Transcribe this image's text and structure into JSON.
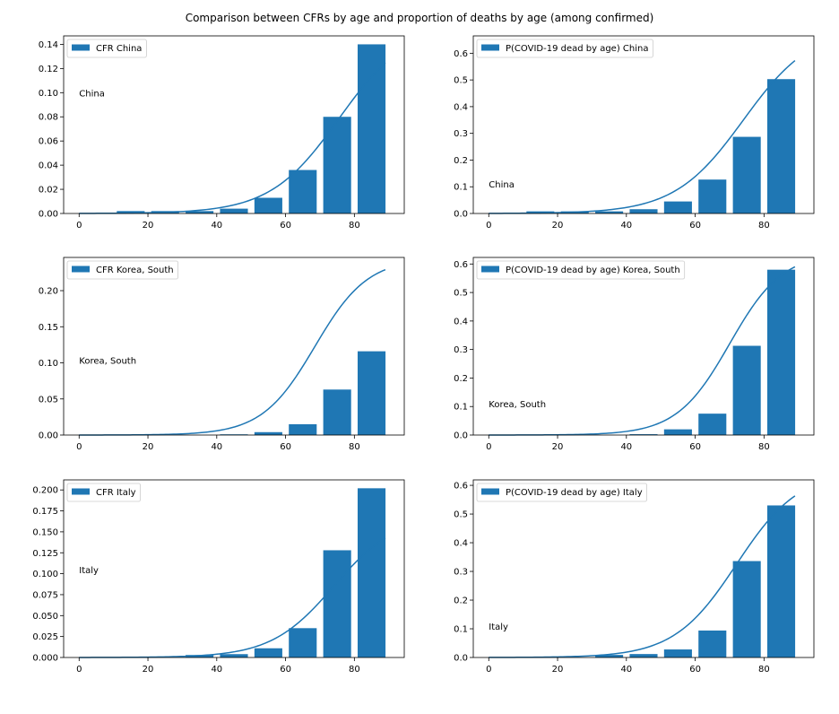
{
  "figure": {
    "title": "Comparison between CFRs by age and proportion of deaths by age (among confirmed)"
  },
  "style": {
    "bar_color": "#1f77b4",
    "line_color": "#1f77b4",
    "axis_color": "#000000"
  },
  "chart_data": [
    {
      "type": "bar",
      "legend": "CFR China",
      "legend_placement": "upper-left",
      "annotation": "China",
      "annotation_at": [
        0,
        0.1
      ],
      "x": [
        5,
        15,
        25,
        35,
        45,
        55,
        65,
        75,
        85
      ],
      "values": [
        0.0,
        0.002,
        0.002,
        0.002,
        0.004,
        0.013,
        0.036,
        0.08,
        0.14
      ],
      "xticks": [
        0,
        20,
        40,
        60,
        80
      ],
      "yticks": [
        0.0,
        0.02,
        0.04,
        0.06,
        0.08,
        0.1,
        0.12,
        0.14
      ],
      "ytick_labels": [
        "0.00",
        "0.02",
        "0.04",
        "0.06",
        "0.08",
        "0.10",
        "0.12",
        "0.14"
      ],
      "xlim": [
        -4.5,
        94.5
      ],
      "ylim": [
        0,
        0.147
      ],
      "curve": {
        "x0": 0,
        "x1": 89,
        "L": 0.157,
        "k": 0.1,
        "m": 75.5
      },
      "grid": false
    },
    {
      "type": "bar",
      "legend": "P(COVID-19 dead by age) China",
      "legend_placement": "upper-left",
      "annotation": "China",
      "annotation_at": [
        0,
        0.11
      ],
      "x": [
        5,
        15,
        25,
        35,
        45,
        55,
        65,
        75,
        85
      ],
      "values": [
        0.0,
        0.008,
        0.008,
        0.008,
        0.016,
        0.045,
        0.127,
        0.287,
        0.503
      ],
      "xticks": [
        0,
        20,
        40,
        60,
        80
      ],
      "yticks": [
        0.0,
        0.1,
        0.2,
        0.3,
        0.4,
        0.5,
        0.6
      ],
      "ytick_labels": [
        "0.0",
        "0.1",
        "0.2",
        "0.3",
        "0.4",
        "0.5",
        "0.6"
      ],
      "xlim": [
        -4.5,
        94.5
      ],
      "ylim": [
        0,
        0.665
      ],
      "curve": {
        "x0": 0,
        "x1": 89,
        "L": 0.7,
        "k": 0.1,
        "m": 74
      },
      "grid": false
    },
    {
      "type": "bar",
      "legend": "CFR Korea, South",
      "legend_placement": "upper-left",
      "annotation": "Korea, South",
      "annotation_at": [
        0,
        0.104
      ],
      "x": [
        5,
        15,
        25,
        35,
        45,
        55,
        65,
        75,
        85
      ],
      "values": [
        0.0,
        0.0,
        0.0,
        0.0,
        0.001,
        0.004,
        0.015,
        0.063,
        0.116
      ],
      "xticks": [
        0,
        20,
        40,
        60,
        80
      ],
      "yticks": [
        0.0,
        0.05,
        0.1,
        0.15,
        0.2
      ],
      "ytick_labels": [
        "0.00",
        "0.05",
        "0.10",
        "0.15",
        "0.20"
      ],
      "xlim": [
        -4.5,
        94.5
      ],
      "ylim": [
        0,
        0.246
      ],
      "curve": {
        "x0": 0,
        "x1": 89,
        "L": 0.245,
        "k": 0.13,
        "m": 68.5
      },
      "grid": false
    },
    {
      "type": "bar",
      "legend": "P(COVID-19 dead by age) Korea, South",
      "legend_placement": "upper-left",
      "annotation": "Korea, South",
      "annotation_at": [
        0,
        0.11
      ],
      "x": [
        5,
        15,
        25,
        35,
        45,
        55,
        65,
        75,
        85
      ],
      "values": [
        0.0,
        0.0,
        0.0,
        0.0,
        0.003,
        0.02,
        0.075,
        0.313,
        0.58
      ],
      "xticks": [
        0,
        20,
        40,
        60,
        80
      ],
      "yticks": [
        0.0,
        0.1,
        0.2,
        0.3,
        0.4,
        0.5,
        0.6
      ],
      "ytick_labels": [
        "0.0",
        "0.1",
        "0.2",
        "0.3",
        "0.4",
        "0.5",
        "0.6"
      ],
      "xlim": [
        -4.5,
        94.5
      ],
      "ylim": [
        0,
        0.623
      ],
      "curve": {
        "x0": 0,
        "x1": 89,
        "L": 0.64,
        "k": 0.13,
        "m": 70
      },
      "grid": false
    },
    {
      "type": "bar",
      "legend": "CFR Italy",
      "legend_placement": "upper-left",
      "annotation": "Italy",
      "annotation_at": [
        0,
        0.105
      ],
      "x": [
        5,
        15,
        25,
        35,
        45,
        55,
        65,
        75,
        85
      ],
      "values": [
        0.0,
        0.0,
        0.0,
        0.003,
        0.004,
        0.011,
        0.035,
        0.128,
        0.202
      ],
      "xticks": [
        0,
        20,
        40,
        60,
        80
      ],
      "yticks": [
        0.0,
        0.025,
        0.05,
        0.075,
        0.1,
        0.125,
        0.15,
        0.175,
        0.2
      ],
      "ytick_labels": [
        "0.000",
        "0.025",
        "0.050",
        "0.075",
        "0.100",
        "0.125",
        "0.150",
        "0.175",
        "0.200"
      ],
      "xlim": [
        -4.5,
        94.5
      ],
      "ylim": [
        0,
        0.212
      ],
      "curve": {
        "x0": 0,
        "x1": 89,
        "L": 0.17,
        "k": 0.11,
        "m": 74
      },
      "grid": false
    },
    {
      "type": "bar",
      "legend": "P(COVID-19 dead by age) Italy",
      "legend_placement": "upper-left",
      "annotation": "Italy",
      "annotation_at": [
        0,
        0.11
      ],
      "x": [
        5,
        15,
        25,
        35,
        45,
        55,
        65,
        75,
        85
      ],
      "values": [
        0.0,
        0.0,
        0.0,
        0.009,
        0.012,
        0.028,
        0.094,
        0.336,
        0.53
      ],
      "xticks": [
        0,
        20,
        40,
        60,
        80
      ],
      "yticks": [
        0.0,
        0.1,
        0.2,
        0.3,
        0.4,
        0.5,
        0.6
      ],
      "ytick_labels": [
        "0.0",
        "0.1",
        "0.2",
        "0.3",
        "0.4",
        "0.5",
        "0.6"
      ],
      "xlim": [
        -4.5,
        94.5
      ],
      "ylim": [
        0,
        0.619
      ],
      "curve": {
        "x0": 0,
        "x1": 89,
        "L": 0.65,
        "k": 0.11,
        "m": 72
      },
      "grid": false
    }
  ]
}
